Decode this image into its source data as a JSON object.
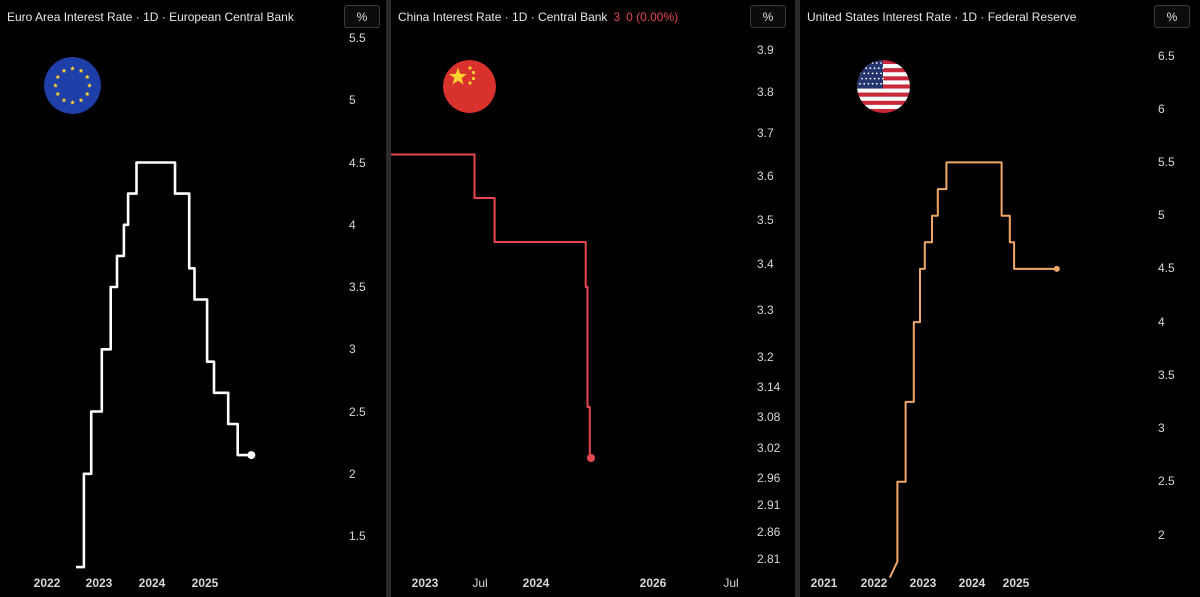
{
  "panels": [
    {
      "title": "Euro Area Interest Rate · 1D · European Central Bank",
      "unit_button": "%",
      "flag_icon": "eu-flag-icon",
      "color": "#ffffff"
    },
    {
      "title": "China Interest Rate · 1D · Central Bank",
      "last_value": "3",
      "change": "0 (0.00%)",
      "unit_button": "%",
      "flag_icon": "china-flag-icon",
      "color": "#e5484d"
    },
    {
      "title": "United States Interest Rate · 1D · Federal Reserve",
      "unit_button": "%",
      "flag_icon": "us-flag-icon",
      "color": "#f0a868"
    }
  ],
  "chart_data": [
    {
      "type": "line",
      "title": "Euro Area Interest Rate · 1D · European Central Bank",
      "x_tick_labels": [
        "2022",
        "2023",
        "2024",
        "2025"
      ],
      "y_tick_labels": [
        "1.5",
        "2",
        "2.5",
        "3",
        "3.5",
        "4",
        "4.5",
        "5",
        "5.5"
      ],
      "y_unit": "%",
      "series": [
        {
          "color": "#ffffff",
          "x": [
            2022.55,
            2022.55,
            2022.7,
            2022.7,
            2022.84,
            2022.84,
            2023.04,
            2023.04,
            2023.21,
            2023.21,
            2023.33,
            2023.33,
            2023.46,
            2023.46,
            2023.54,
            2023.54,
            2023.7,
            2023.7,
            2024.43,
            2024.43,
            2024.7,
            2024.7,
            2024.8,
            2024.8,
            2025.04,
            2025.04,
            2025.17,
            2025.17,
            2025.44,
            2025.44,
            2025.62,
            2025.62,
            2025.88
          ],
          "y": [
            1.25,
            1.25,
            1.25,
            2.0,
            2.0,
            2.5,
            2.5,
            3.0,
            3.0,
            3.5,
            3.5,
            3.75,
            3.75,
            4.0,
            4.0,
            4.25,
            4.25,
            4.5,
            4.5,
            4.25,
            4.25,
            3.65,
            3.65,
            3.4,
            3.4,
            2.9,
            2.9,
            2.65,
            2.65,
            2.4,
            2.4,
            2.15,
            2.15
          ]
        }
      ],
      "last_point": {
        "x": 2025.88,
        "y": 2.15
      },
      "ylim": [
        1.25,
        5.55
      ],
      "xlim": [
        2021.5,
        2026.3
      ],
      "legend": "none",
      "grid": false
    },
    {
      "type": "line",
      "title": "China Interest Rate · 1D · Central Bank",
      "x_tick_labels": [
        "2023",
        "Jul",
        "2024",
        "2026",
        "Jul"
      ],
      "y_tick_labels": [
        "2.81",
        "2.86",
        "2.91",
        "2.96",
        "3.02",
        "3.08",
        "3.14",
        "3.2",
        "3.3",
        "3.4",
        "3.5",
        "3.6",
        "3.7",
        "3.8",
        "3.9"
      ],
      "y_unit": "%",
      "y_scale": "non-linear",
      "series": [
        {
          "color": "#e5484d",
          "x": [
            2022.55,
            2023.45,
            2023.45,
            2023.63,
            2023.63,
            2024.85,
            2024.85,
            2024.88,
            2024.88,
            2024.92,
            2024.92,
            2024.94
          ],
          "y": [
            3.65,
            3.65,
            3.55,
            3.55,
            3.45,
            3.45,
            3.35,
            3.35,
            3.1,
            3.1,
            3.0,
            3.0
          ]
        }
      ],
      "last_point": {
        "x": 2024.94,
        "y": 3.0
      },
      "legend": "none",
      "grid": false
    },
    {
      "type": "line",
      "title": "United States Interest Rate · 1D · Federal Reserve",
      "x_tick_labels": [
        "2021",
        "2022",
        "2023",
        "2024",
        "2025"
      ],
      "y_tick_labels": [
        "2",
        "2.5",
        "3",
        "3.5",
        "4",
        "4.5",
        "5",
        "5.5",
        "6",
        "6.5"
      ],
      "y_unit": "%",
      "series": [
        {
          "color": "#f0a868",
          "x": [
            2022.37,
            2022.37,
            2022.53,
            2022.53,
            2022.7,
            2022.7,
            2022.87,
            2022.87,
            2023.0,
            2023.0,
            2023.1,
            2023.1,
            2023.25,
            2023.25,
            2023.37,
            2023.37,
            2023.55,
            2023.55,
            2024.7,
            2024.7,
            2024.87,
            2024.87,
            2024.96,
            2024.96,
            2025.85
          ],
          "y": [
            1.6,
            1.6,
            1.75,
            2.5,
            2.5,
            3.25,
            3.25,
            4.0,
            4.0,
            4.5,
            4.5,
            4.75,
            4.75,
            5.0,
            5.0,
            5.25,
            5.25,
            5.5,
            5.5,
            5.0,
            5.0,
            4.75,
            4.75,
            4.5,
            4.5
          ]
        }
      ],
      "last_point": {
        "x": 2025.85,
        "y": 4.5
      },
      "ylim": [
        1.6,
        6.6
      ],
      "xlim": [
        2020.45,
        2026.5
      ],
      "legend": "none",
      "grid": false
    }
  ]
}
